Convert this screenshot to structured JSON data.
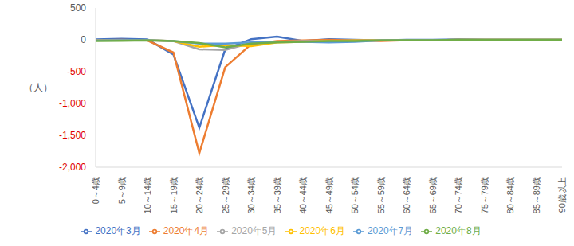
{
  "chart_data": {
    "type": "line",
    "y_label": "（人）",
    "categories": [
      "0～4歳",
      "5～9歳",
      "10～14歳",
      "15～19歳",
      "20～24歳",
      "25～29歳",
      "30～34歳",
      "35～39歳",
      "40～44歳",
      "45～49歳",
      "50～54歳",
      "55～59歳",
      "60～64歳",
      "65～69歳",
      "70～74歳",
      "75～79歳",
      "80～84歳",
      "85～89歳",
      "90歳以上"
    ],
    "series": [
      {
        "name": "2020年3月",
        "color": "#4472c4",
        "values": [
          5,
          15,
          5,
          -230,
          -1380,
          -150,
          10,
          50,
          -20,
          10,
          0,
          -10,
          0,
          0,
          5,
          0,
          0,
          0,
          0
        ]
      },
      {
        "name": "2020年4月",
        "color": "#ed7d31",
        "values": [
          -5,
          0,
          -10,
          -200,
          -1780,
          -430,
          -70,
          -20,
          -10,
          0,
          -10,
          -20,
          -5,
          -5,
          0,
          0,
          0,
          0,
          0
        ]
      },
      {
        "name": "2020年5月",
        "color": "#a5a5a5",
        "values": [
          -10,
          -5,
          -5,
          -20,
          -150,
          -160,
          -50,
          -30,
          -20,
          -20,
          -10,
          -10,
          -5,
          -5,
          0,
          0,
          0,
          0,
          0
        ]
      },
      {
        "name": "2020年6月",
        "color": "#ffc000",
        "values": [
          -10,
          -5,
          -5,
          -20,
          -110,
          -80,
          -100,
          -40,
          -30,
          -20,
          -10,
          -10,
          -5,
          -5,
          0,
          0,
          0,
          0,
          0
        ]
      },
      {
        "name": "2020年7月",
        "color": "#5b9bd5",
        "values": [
          -10,
          -5,
          -5,
          -20,
          -60,
          -60,
          -40,
          -30,
          -30,
          -40,
          -30,
          -10,
          -5,
          -5,
          0,
          0,
          0,
          0,
          0
        ]
      },
      {
        "name": "2020年8月",
        "color": "#70ad47",
        "values": [
          -20,
          -15,
          -10,
          -20,
          -50,
          -120,
          -60,
          -40,
          -30,
          -20,
          -20,
          -10,
          -5,
          -5,
          0,
          0,
          0,
          0,
          0
        ]
      }
    ],
    "ylim": [
      -2000,
      500
    ],
    "yticks": [
      500,
      0,
      -500,
      {
        "value": -1000,
        "label": "-1,000"
      },
      {
        "value": -1500,
        "label": "-1,500"
      },
      {
        "value": -2000,
        "label": "-2,000"
      }
    ],
    "grid": false,
    "legend": "bottom",
    "marker": "none",
    "line_style": "solid"
  }
}
